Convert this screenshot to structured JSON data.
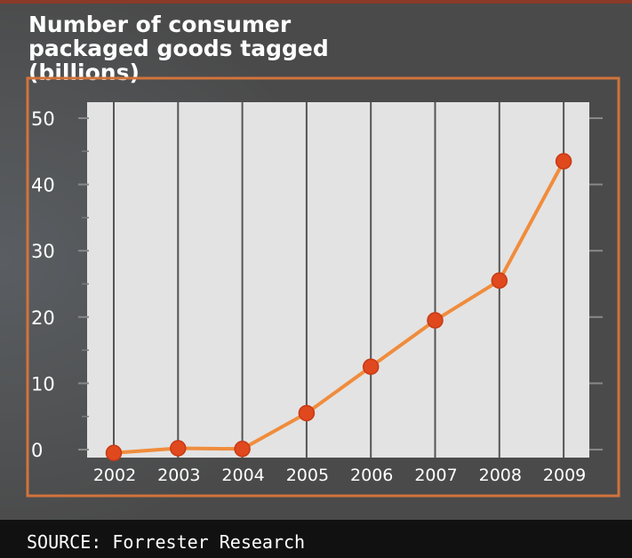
{
  "chart_data": {
    "type": "line",
    "title": "Number of consumer packaged goods tagged (billions)",
    "title_lines": [
      "Number of consumer",
      "packaged goods tagged",
      "(billions)"
    ],
    "categories": [
      "2002",
      "2003",
      "2004",
      "2005",
      "2006",
      "2007",
      "2008",
      "2009"
    ],
    "values": [
      -0.5,
      0.2,
      0.1,
      5.5,
      12.5,
      19.5,
      25.5,
      43.5
    ],
    "ylim": [
      0,
      50
    ],
    "yticks": [
      "0",
      "10",
      "20",
      "30",
      "40",
      "50"
    ],
    "xlabel": "",
    "ylabel": "",
    "grid": "vertical",
    "legend": "none"
  },
  "source": "SOURCE: Forrester Research",
  "colors": {
    "panel": "#4a4a4a",
    "plot_bg": "#e3e3e3",
    "frame": "#d1733c",
    "line": "#f08c3c",
    "marker": "#e0481e",
    "footer_bg": "#111111",
    "text": "#ffffff"
  }
}
